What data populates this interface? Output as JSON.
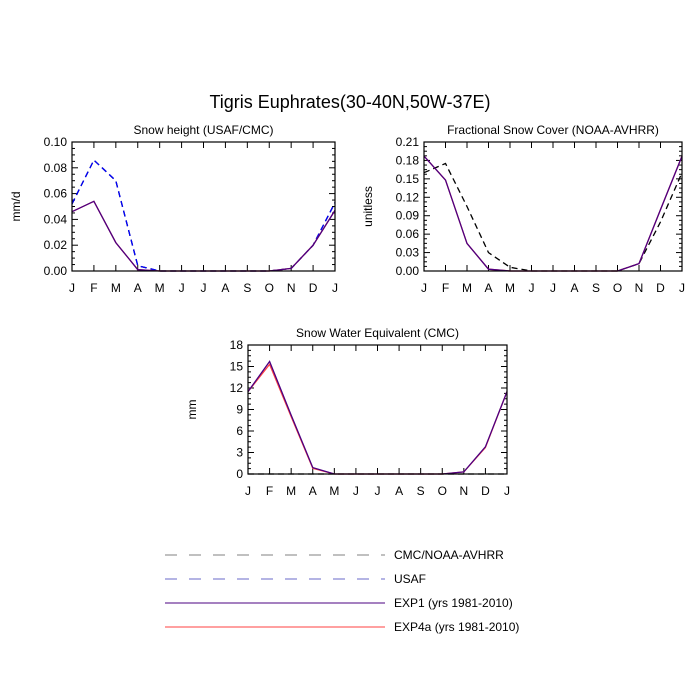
{
  "figure_title": "Tigris Euphrates(30-40N,50W-37E)",
  "month_labels": [
    "J",
    "F",
    "M",
    "A",
    "M",
    "J",
    "J",
    "A",
    "S",
    "O",
    "N",
    "D",
    "J"
  ],
  "colors": {
    "cmc_noaa": "#000000",
    "usaf": "#0000ff",
    "exp1": "#4b0082",
    "exp4a": "#ff4040"
  },
  "legend": {
    "items": [
      {
        "label": "CMC/NOAA-AVHRR",
        "color": "#808080",
        "dash": "dashed"
      },
      {
        "label": "USAF",
        "color": "#6a6ac8",
        "dash": "dashed"
      },
      {
        "label": "EXP1 (yrs 1981-2010)",
        "color": "#4b0082",
        "dash": "solid"
      },
      {
        "label": "EXP4a (yrs 1981-2010)",
        "color": "#ff4040",
        "dash": "solid"
      }
    ]
  },
  "chart_data": [
    {
      "id": "snow-height",
      "type": "line",
      "title": "Snow height (USAF/CMC)",
      "ylabel": "mm/d",
      "ylim": [
        0,
        0.1
      ],
      "yticks": [
        0,
        0.02,
        0.04,
        0.06,
        0.08,
        0.1
      ],
      "ytick_labels": [
        "0.00",
        "0.02",
        "0.04",
        "0.06",
        "0.08",
        "0.10"
      ],
      "series": [
        {
          "name": "CMC/NOAA-AVHRR",
          "color": "#000000",
          "dash": "dashed",
          "values": [
            0.052,
            0.086,
            0.07,
            0.004,
            0,
            0,
            0,
            0,
            0,
            0,
            0.002,
            0.02,
            0.053
          ]
        },
        {
          "name": "USAF",
          "color": "#0000ff",
          "dash": "dashed",
          "values": [
            0.052,
            0.086,
            0.07,
            0.004,
            0,
            0,
            0,
            0,
            0,
            0,
            0.002,
            0.02,
            0.053
          ]
        },
        {
          "name": "EXP4a (yrs 1981-2010)",
          "color": "#ff4040",
          "dash": "solid",
          "values": [
            0.046,
            0.054,
            0.022,
            0.001,
            0,
            0,
            0,
            0,
            0,
            0,
            0.002,
            0.02,
            0.047
          ]
        },
        {
          "name": "EXP1 (yrs 1981-2010)",
          "color": "#4b0082",
          "dash": "solid",
          "values": [
            0.046,
            0.054,
            0.022,
            0.001,
            0,
            0,
            0,
            0,
            0,
            0,
            0.002,
            0.02,
            0.047
          ]
        }
      ]
    },
    {
      "id": "fractional-snow-cover",
      "type": "line",
      "title": "Fractional Snow Cover (NOAA-AVHRR)",
      "ylabel": "unitless",
      "ylim": [
        0,
        0.21
      ],
      "yticks": [
        0,
        0.03,
        0.06,
        0.09,
        0.12,
        0.15,
        0.18,
        0.21
      ],
      "ytick_labels": [
        "0.00",
        "0.03",
        "0.06",
        "0.09",
        "0.12",
        "0.15",
        "0.18",
        "0.21"
      ],
      "series": [
        {
          "name": "CMC/NOAA-AVHRR",
          "color": "#000000",
          "dash": "dashed",
          "values": [
            0.16,
            0.175,
            0.105,
            0.03,
            0.006,
            0,
            0,
            0,
            0,
            0,
            0.012,
            0.08,
            0.16
          ]
        },
        {
          "name": "EXP4a (yrs 1981-2010)",
          "color": "#ff4040",
          "dash": "solid",
          "values": [
            0.187,
            0.148,
            0.045,
            0.003,
            0,
            0,
            0,
            0,
            0,
            0,
            0.012,
            0.1,
            0.187
          ]
        },
        {
          "name": "EXP1 (yrs 1981-2010)",
          "color": "#4b0082",
          "dash": "solid",
          "values": [
            0.187,
            0.148,
            0.045,
            0.003,
            0,
            0,
            0,
            0,
            0,
            0,
            0.012,
            0.1,
            0.187
          ]
        }
      ]
    },
    {
      "id": "snow-water-equivalent",
      "type": "line",
      "title": "Snow Water Equivalent (CMC)",
      "ylabel": "mm",
      "ylim": [
        0,
        18
      ],
      "yticks": [
        0,
        3,
        6,
        9,
        12,
        15,
        18
      ],
      "ytick_labels": [
        "0",
        "3",
        "6",
        "9",
        "12",
        "15",
        "18"
      ],
      "series": [
        {
          "name": "CMC/NOAA-AVHRR",
          "color": "#000000",
          "dash": "dashed",
          "values": [
            0,
            0,
            0,
            0,
            0,
            0,
            0,
            0,
            0,
            0,
            0,
            0,
            0
          ]
        },
        {
          "name": "EXP4a (yrs 1981-2010)",
          "color": "#ff4040",
          "dash": "solid",
          "values": [
            11.5,
            15.3,
            8.0,
            0.8,
            0,
            0,
            0,
            0,
            0,
            0,
            0.3,
            3.7,
            11.5
          ]
        },
        {
          "name": "EXP1 (yrs 1981-2010)",
          "color": "#4b0082",
          "dash": "solid",
          "values": [
            11.5,
            15.7,
            8.2,
            0.9,
            0,
            0,
            0,
            0,
            0,
            0,
            0.3,
            3.8,
            11.5
          ]
        }
      ]
    }
  ]
}
